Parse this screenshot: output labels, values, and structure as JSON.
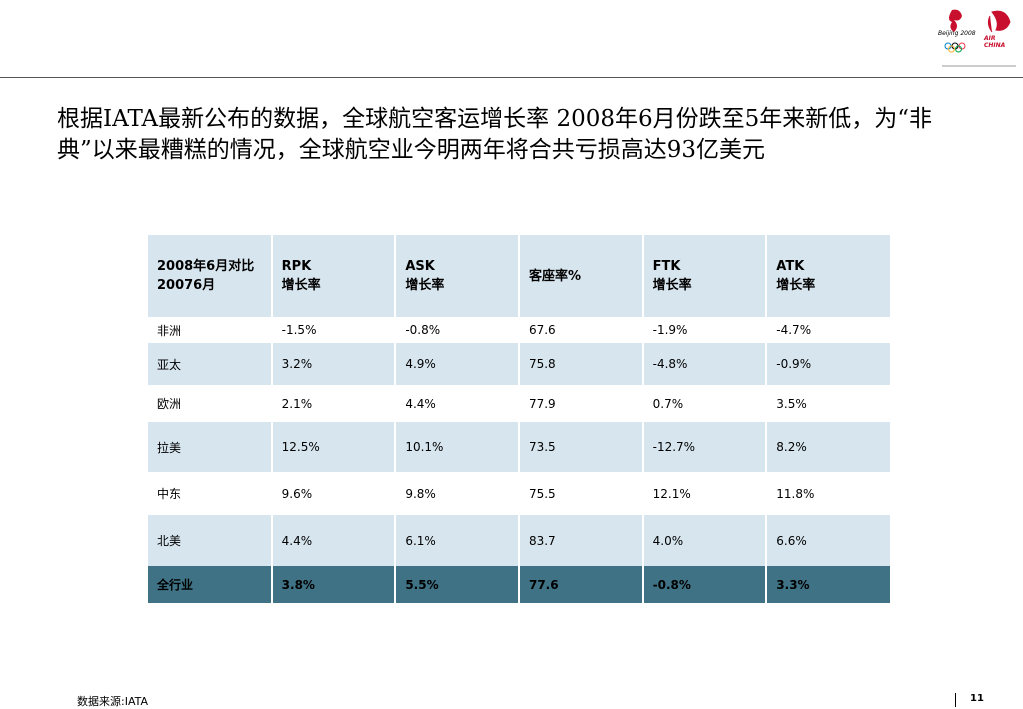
{
  "logo": {
    "olympic": "Beijing 2008",
    "airline": "AIR CHINA"
  },
  "title": "根据IATA最新公布的数据，全球航空客运增长率 2008年6月份跌至5年来新低，为“非典”以来最糟糕的情况，全球航空业今明两年将合共亏损高达93亿美元",
  "table": {
    "header": [
      [
        "2008年6月对比",
        "20076月"
      ],
      [
        "RPK",
        "增长率"
      ],
      [
        "ASK",
        "增长率"
      ],
      [
        "客座率%"
      ],
      [
        "FTK",
        "增长率"
      ],
      [
        "ATK",
        "增长率"
      ]
    ],
    "rows": [
      [
        "非洲",
        "-1.5%",
        "-0.8%",
        "67.6",
        "-1.9%",
        "-4.7%"
      ],
      [
        "亚太",
        "3.2%",
        "4.9%",
        "75.8",
        "-4.8%",
        "-0.9%"
      ],
      [
        "欧洲",
        "2.1%",
        "4.4%",
        "77.9",
        "0.7%",
        "3.5%"
      ],
      [
        "拉美",
        "12.5%",
        "10.1%",
        "73.5",
        "-12.7%",
        "8.2%"
      ],
      [
        "中东",
        "9.6%",
        "9.8%",
        "75.5",
        "12.1%",
        "11.8%"
      ],
      [
        "北美",
        "4.4%",
        "6.1%",
        "83.7",
        "4.0%",
        "6.6%"
      ],
      [
        "全行业",
        "3.8%",
        "5.5%",
        "77.6",
        "-0.8%",
        "3.3%"
      ]
    ]
  },
  "footer": {
    "source": "数据来源:IATA",
    "page": "11"
  }
}
